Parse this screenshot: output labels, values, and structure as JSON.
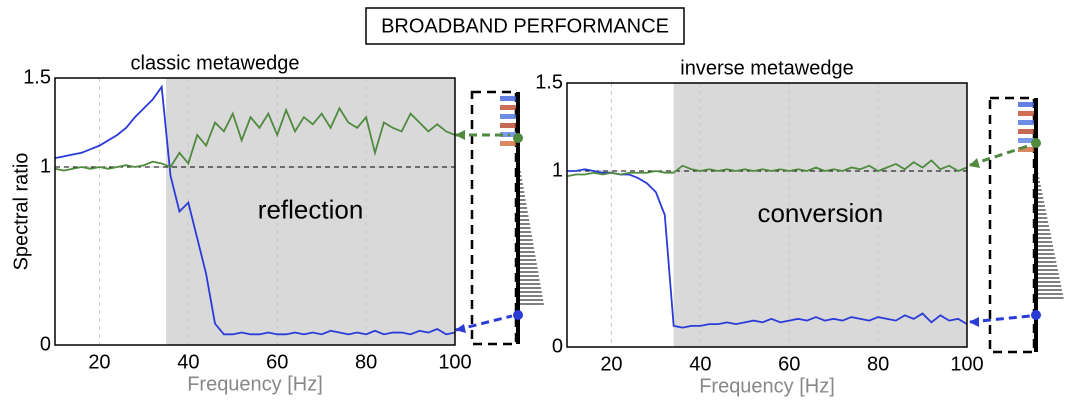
{
  "title": "BROADBAND PERFORMANCE",
  "chart_data": [
    {
      "type": "line",
      "title": "classic metawedge",
      "y_label": "Spectral ratio",
      "x_label": "Frequency [Hz]",
      "annotation": "reflection",
      "shaded_region": [
        35,
        100
      ],
      "reference_line": 1,
      "grid": true,
      "xlim": [
        10,
        100
      ],
      "xticks": [
        20,
        40,
        60,
        80,
        100
      ],
      "ylim": [
        0,
        1.5
      ],
      "yticks": [
        0,
        1,
        1.5
      ],
      "x": [
        10,
        12,
        14,
        16,
        18,
        20,
        22,
        24,
        26,
        28,
        30,
        32,
        34,
        36,
        38,
        40,
        42,
        44,
        46,
        48,
        50,
        52,
        54,
        56,
        58,
        60,
        62,
        64,
        66,
        68,
        70,
        72,
        74,
        76,
        78,
        80,
        82,
        84,
        86,
        88,
        90,
        92,
        94,
        96,
        98,
        100
      ],
      "series": [
        {
          "color": "#2b3bd8",
          "values": [
            1.05,
            1.06,
            1.07,
            1.08,
            1.1,
            1.12,
            1.15,
            1.18,
            1.22,
            1.28,
            1.33,
            1.38,
            1.45,
            0.95,
            0.75,
            0.8,
            0.6,
            0.4,
            0.12,
            0.06,
            0.06,
            0.07,
            0.06,
            0.06,
            0.07,
            0.06,
            0.06,
            0.07,
            0.06,
            0.07,
            0.06,
            0.08,
            0.07,
            0.06,
            0.07,
            0.06,
            0.08,
            0.06,
            0.07,
            0.07,
            0.06,
            0.08,
            0.07,
            0.09,
            0.06,
            0.07
          ]
        },
        {
          "color": "#4f8a3f",
          "values": [
            0.99,
            0.98,
            0.99,
            1.0,
            0.99,
            1.0,
            0.99,
            1.0,
            1.01,
            1.0,
            1.01,
            1.03,
            1.02,
            1.0,
            1.08,
            1.02,
            1.18,
            1.12,
            1.25,
            1.2,
            1.3,
            1.15,
            1.28,
            1.22,
            1.3,
            1.18,
            1.32,
            1.2,
            1.28,
            1.24,
            1.3,
            1.22,
            1.33,
            1.25,
            1.22,
            1.28,
            1.08,
            1.25,
            1.22,
            1.2,
            1.3,
            1.25,
            1.2,
            1.24,
            1.2,
            1.18
          ]
        }
      ]
    },
    {
      "type": "line",
      "title": "inverse metawedge",
      "x_label": "Frequency [Hz]",
      "annotation": "conversion",
      "shaded_region": [
        34,
        100
      ],
      "reference_line": 1,
      "grid": true,
      "xlim": [
        10,
        100
      ],
      "xticks": [
        20,
        40,
        60,
        80,
        100
      ],
      "ylim": [
        0,
        1.5
      ],
      "yticks": [
        0,
        1,
        1.5
      ],
      "x": [
        10,
        12,
        14,
        16,
        18,
        20,
        22,
        24,
        26,
        28,
        30,
        32,
        34,
        36,
        38,
        40,
        42,
        44,
        46,
        48,
        50,
        52,
        54,
        56,
        58,
        60,
        62,
        64,
        66,
        68,
        70,
        72,
        74,
        76,
        78,
        80,
        82,
        84,
        86,
        88,
        90,
        92,
        94,
        96,
        98,
        100
      ],
      "series": [
        {
          "color": "#2b3bd8",
          "values": [
            1.0,
            1.0,
            1.01,
            1.0,
            0.99,
            0.99,
            0.98,
            0.98,
            0.96,
            0.93,
            0.88,
            0.75,
            0.12,
            0.11,
            0.12,
            0.12,
            0.13,
            0.13,
            0.14,
            0.13,
            0.14,
            0.15,
            0.14,
            0.16,
            0.14,
            0.15,
            0.16,
            0.15,
            0.17,
            0.15,
            0.16,
            0.15,
            0.17,
            0.16,
            0.15,
            0.17,
            0.16,
            0.15,
            0.18,
            0.16,
            0.19,
            0.14,
            0.18,
            0.15,
            0.16,
            0.13
          ]
        },
        {
          "color": "#4f8a3f",
          "values": [
            0.97,
            0.98,
            0.98,
            0.99,
            0.98,
            0.99,
            0.98,
            0.99,
            0.99,
            0.99,
            1.0,
            0.99,
            0.99,
            1.03,
            1.01,
            1.0,
            1.01,
            1.0,
            1.01,
            1.0,
            1.01,
            1.0,
            1.01,
            1.0,
            1.01,
            1.0,
            1.01,
            1.0,
            1.02,
            1.0,
            1.01,
            1.0,
            1.02,
            1.01,
            1.03,
            1.0,
            1.02,
            1.04,
            1.01,
            1.05,
            1.02,
            1.06,
            1.01,
            1.03,
            1.0,
            1.02
          ]
        }
      ]
    }
  ]
}
